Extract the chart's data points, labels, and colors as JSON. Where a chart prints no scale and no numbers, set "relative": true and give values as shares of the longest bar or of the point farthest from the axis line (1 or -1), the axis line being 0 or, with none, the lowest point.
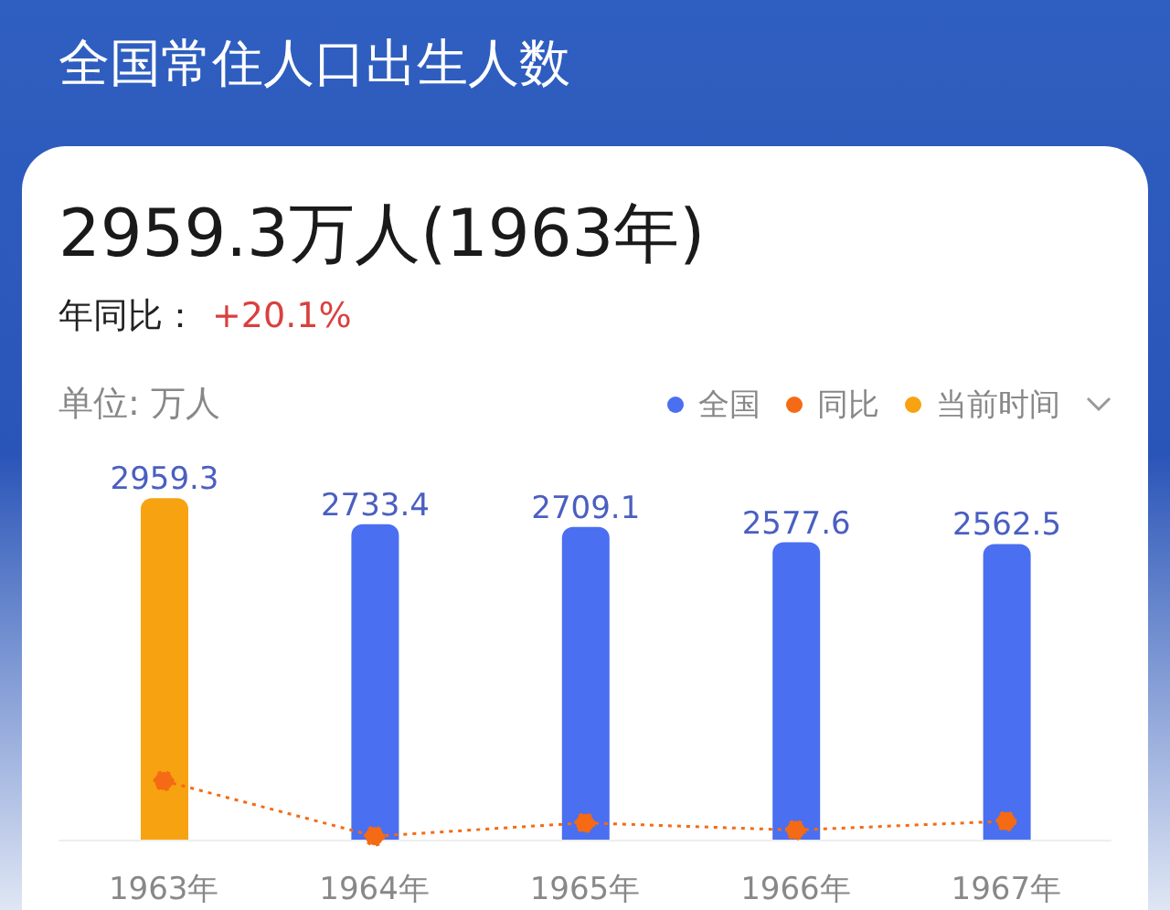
{
  "chart_data": [
    {
      "type": "bar",
      "title": "全国常住人口出生人数",
      "subtitle": "2959.3万人(1963年)",
      "annotations": [
        "年同比：",
        "+20.1%"
      ],
      "ylabel": "单位: 万人",
      "categories": [
        "1963年",
        "1964年",
        "1965年",
        "1966年",
        "1967年"
      ],
      "stacked": true,
      "series": [
        {
          "name": "全国",
          "color": "#4a6ff0",
          "values": [
            null,
            2733.4,
            2709.1,
            2577.6,
            2562.5
          ]
        },
        {
          "name": "当前时间",
          "color": "#f7a311",
          "values": [
            2959.3,
            null,
            null,
            null,
            null
          ]
        }
      ],
      "data_labels": true,
      "legend": "top right"
    },
    {
      "type": "line",
      "categories": [
        null,
        null,
        null,
        null,
        null
      ],
      "relative": true,
      "series": [
        {
          "name": "同比",
          "color": "#f56a14",
          "line_style": "dotted",
          "marker": "circle",
          "values": [
            1,
            0,
            0.24,
            0.11,
            0.27
          ]
        }
      ],
      "legend": "top right"
    }
  ]
}
